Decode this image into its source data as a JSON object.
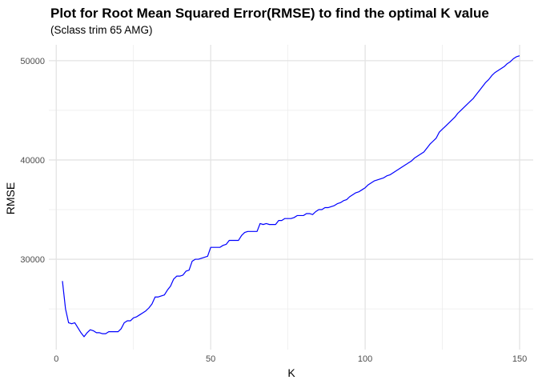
{
  "chart_data": {
    "type": "line",
    "title": "Plot for Root Mean Squared Error(RMSE) to find the optimal K value",
    "subtitle": "(Sclass trim 65 AMG)",
    "xlabel": "K",
    "ylabel": "RMSE",
    "xlim": [
      -2.4,
      154.4
    ],
    "ylim": [
      20900,
      51600
    ],
    "x_ticks": [
      0,
      50,
      100,
      150
    ],
    "x_tick_labels": [
      "0",
      "50",
      "100",
      "150"
    ],
    "y_ticks": [
      30000,
      40000,
      50000
    ],
    "y_tick_labels": [
      "30000",
      "40000",
      "50000"
    ],
    "grid": true,
    "line_color": "#0000ff",
    "series": [
      {
        "x": [
          2,
          3,
          4,
          5,
          6,
          7,
          8,
          9,
          10,
          11,
          12,
          13,
          14,
          15,
          16,
          17,
          18,
          19,
          20,
          21,
          22,
          23,
          24,
          25,
          26,
          27,
          28,
          29,
          30,
          31,
          32,
          33,
          34,
          35,
          36,
          37,
          38,
          39,
          40,
          41,
          42,
          43,
          44,
          45,
          46,
          47,
          48,
          49,
          50,
          51,
          52,
          53,
          54,
          55,
          56,
          57,
          58,
          59,
          60,
          61,
          62,
          63,
          64,
          65,
          66,
          67,
          68,
          69,
          70,
          71,
          72,
          73,
          74,
          75,
          76,
          77,
          78,
          79,
          80,
          81,
          82,
          83,
          84,
          85,
          86,
          87,
          88,
          89,
          90,
          91,
          92,
          93,
          94,
          95,
          96,
          97,
          98,
          99,
          100,
          101,
          102,
          103,
          104,
          105,
          106,
          107,
          108,
          109,
          110,
          111,
          112,
          113,
          114,
          115,
          116,
          117,
          118,
          119,
          120,
          121,
          122,
          123,
          124,
          125,
          126,
          127,
          128,
          129,
          130,
          131,
          132,
          133,
          134,
          135,
          136,
          137,
          138,
          139,
          140,
          141,
          142,
          143,
          144,
          145,
          146,
          147,
          148,
          149,
          150
        ],
        "values": [
          27800,
          25000,
          23600,
          23500,
          23600,
          23100,
          22600,
          22200,
          22600,
          22900,
          22800,
          22600,
          22600,
          22500,
          22500,
          22700,
          22700,
          22700,
          22700,
          23000,
          23600,
          23800,
          23800,
          24100,
          24200,
          24400,
          24600,
          24800,
          25100,
          25500,
          26200,
          26200,
          26300,
          26400,
          26900,
          27300,
          28000,
          28300,
          28300,
          28400,
          28800,
          28900,
          29800,
          30000,
          30000,
          30100,
          30200,
          30300,
          31200,
          31200,
          31200,
          31200,
          31400,
          31500,
          31900,
          31900,
          31900,
          31900,
          32400,
          32700,
          32800,
          32800,
          32800,
          32800,
          33600,
          33500,
          33600,
          33500,
          33500,
          33500,
          33900,
          33900,
          34100,
          34100,
          34100,
          34200,
          34400,
          34400,
          34400,
          34600,
          34600,
          34500,
          34800,
          35000,
          35000,
          35200,
          35200,
          35300,
          35400,
          35600,
          35700,
          35900,
          36000,
          36300,
          36500,
          36700,
          36800,
          37000,
          37200,
          37500,
          37700,
          37900,
          38000,
          38100,
          38200,
          38400,
          38500,
          38700,
          38900,
          39100,
          39300,
          39500,
          39700,
          39900,
          40200,
          40400,
          40600,
          40800,
          41200,
          41600,
          41900,
          42200,
          42800,
          43100,
          43400,
          43700,
          44000,
          44300,
          44700,
          45000,
          45300,
          45600,
          45900,
          46200,
          46600,
          47000,
          47400,
          47800,
          48100,
          48500,
          48800,
          49000,
          49200,
          49400,
          49700,
          49900,
          50200,
          50400,
          50500
        ]
      }
    ]
  }
}
